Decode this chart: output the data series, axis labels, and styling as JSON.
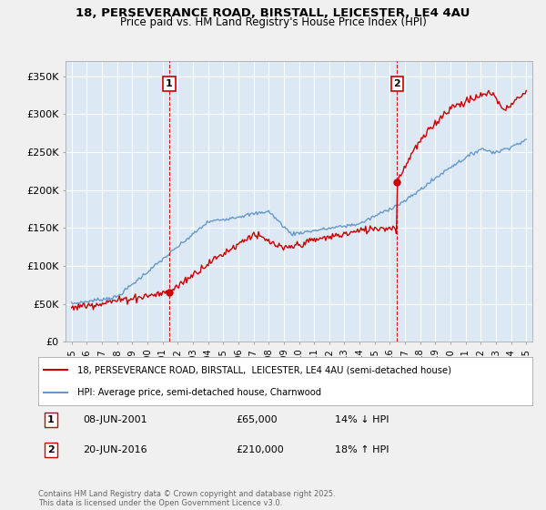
{
  "title_line1": "18, PERSEVERANCE ROAD, BIRSTALL, LEICESTER, LE4 4AU",
  "title_line2": "Price paid vs. HM Land Registry's House Price Index (HPI)",
  "background_color": "#f0f0f0",
  "plot_bg_color": "#dce9f5",
  "sale1": {
    "date_num": 2001.44,
    "price": 65000,
    "label": "1",
    "date_str": "08-JUN-2001",
    "pct": "14% ↓ HPI"
  },
  "sale2": {
    "date_num": 2016.47,
    "price": 210000,
    "label": "2",
    "date_str": "20-JUN-2016",
    "pct": "18% ↑ HPI"
  },
  "legend_line1": "18, PERSEVERANCE ROAD, BIRSTALL,  LEICESTER, LE4 4AU (semi-detached house)",
  "legend_line2": "HPI: Average price, semi-detached house, Charnwood",
  "footer": "Contains HM Land Registry data © Crown copyright and database right 2025.\nThis data is licensed under the Open Government Licence v3.0.",
  "ylabel_ticks": [
    "£0",
    "£50K",
    "£100K",
    "£150K",
    "£200K",
    "£250K",
    "£300K",
    "£350K"
  ],
  "ytick_vals": [
    0,
    50000,
    100000,
    150000,
    200000,
    250000,
    300000,
    350000
  ],
  "ylim": [
    0,
    370000
  ],
  "xlim_start": 1994.6,
  "xlim_end": 2025.4,
  "price_line_color": "#cc0000",
  "hpi_line_color": "#6699cc",
  "annotation_box_color": "#cc0000",
  "dashed_line_color": "#cc0000",
  "grid_color": "#ffffff"
}
